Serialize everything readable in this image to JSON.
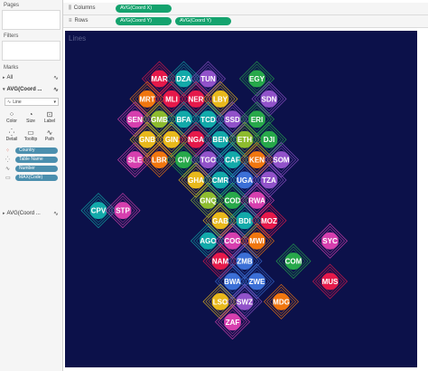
{
  "panel": {
    "pages_title": "Pages",
    "filters_title": "Filters",
    "marks_title": "Marks",
    "all_label": "All",
    "avg_label": "AVG(Coord ...",
    "mark_type": "Line",
    "buttons": [
      {
        "label": "Color",
        "icon": "color-icon"
      },
      {
        "label": "Size",
        "icon": "size-icon"
      },
      {
        "label": "Label",
        "icon": "label-icon"
      },
      {
        "label": "Detail",
        "icon": "detail-icon"
      },
      {
        "label": "Tooltip",
        "icon": "tooltip-icon"
      },
      {
        "label": "Path",
        "icon": "path-icon"
      }
    ],
    "pills": [
      "Country",
      "Table Name",
      "Number",
      "MAX(Code)"
    ],
    "avg2_label": "AVG(Coord ..."
  },
  "shelves": {
    "columns_label": "Columns",
    "columns_pill": "AVG(Coord X)",
    "rows_label": "Rows",
    "rows_pills": [
      "AVG(Coord Y)",
      "AVG(Coord Y)"
    ]
  },
  "viz": {
    "title": "Lines"
  },
  "chart_data": {
    "type": "scatter",
    "title": "Lines",
    "grid": false,
    "points": [
      {
        "code": "MAR",
        "x": 4,
        "y": 1,
        "color": "#e5194a"
      },
      {
        "code": "DZA",
        "x": 5,
        "y": 1,
        "color": "#12a9a9"
      },
      {
        "code": "TUN",
        "x": 6,
        "y": 1,
        "color": "#9152c9"
      },
      {
        "code": "EGY",
        "x": 8,
        "y": 1,
        "color": "#27a84a"
      },
      {
        "code": "MRT",
        "x": 3.5,
        "y": 2,
        "color": "#f0760f"
      },
      {
        "code": "MLI",
        "x": 4.5,
        "y": 2,
        "color": "#e5194a"
      },
      {
        "code": "NER",
        "x": 5.5,
        "y": 2,
        "color": "#e5194a"
      },
      {
        "code": "LBY",
        "x": 6.5,
        "y": 2,
        "color": "#e8b81c"
      },
      {
        "code": "SDN",
        "x": 8.5,
        "y": 2,
        "color": "#9152c9"
      },
      {
        "code": "SEN",
        "x": 3,
        "y": 3,
        "color": "#d63fae"
      },
      {
        "code": "GMB",
        "x": 4,
        "y": 3,
        "color": "#8dbb2f"
      },
      {
        "code": "BFA",
        "x": 5,
        "y": 3,
        "color": "#12a9a9"
      },
      {
        "code": "TCD",
        "x": 6,
        "y": 3,
        "color": "#12a9a9"
      },
      {
        "code": "SSD",
        "x": 7,
        "y": 3,
        "color": "#9152c9"
      },
      {
        "code": "ERI",
        "x": 8,
        "y": 3,
        "color": "#27a84a"
      },
      {
        "code": "GNB",
        "x": 3.5,
        "y": 4,
        "color": "#e8b81c"
      },
      {
        "code": "GIN",
        "x": 4.5,
        "y": 4,
        "color": "#e8b81c"
      },
      {
        "code": "NGA",
        "x": 5.5,
        "y": 4,
        "color": "#e5194a"
      },
      {
        "code": "BEN",
        "x": 6.5,
        "y": 4,
        "color": "#12a9a9"
      },
      {
        "code": "ETH",
        "x": 7.5,
        "y": 4,
        "color": "#8dbb2f"
      },
      {
        "code": "DJI",
        "x": 8.5,
        "y": 4,
        "color": "#27a84a"
      },
      {
        "code": "SLE",
        "x": 3,
        "y": 5,
        "color": "#d63fae"
      },
      {
        "code": "LBR",
        "x": 4,
        "y": 5,
        "color": "#f0760f"
      },
      {
        "code": "CIV",
        "x": 5,
        "y": 5,
        "color": "#27a84a"
      },
      {
        "code": "TGO",
        "x": 6,
        "y": 5,
        "color": "#9152c9"
      },
      {
        "code": "CAF",
        "x": 7,
        "y": 5,
        "color": "#12a9a9"
      },
      {
        "code": "KEN",
        "x": 8,
        "y": 5,
        "color": "#f0760f"
      },
      {
        "code": "SOM",
        "x": 9,
        "y": 5,
        "color": "#9152c9"
      },
      {
        "code": "GHA",
        "x": 5.5,
        "y": 6,
        "color": "#e8b81c"
      },
      {
        "code": "CMR",
        "x": 6.5,
        "y": 6,
        "color": "#12a9a9"
      },
      {
        "code": "UGA",
        "x": 7.5,
        "y": 6,
        "color": "#3b6fd6"
      },
      {
        "code": "TZA",
        "x": 8.5,
        "y": 6,
        "color": "#9152c9"
      },
      {
        "code": "GNQ",
        "x": 6,
        "y": 7,
        "color": "#8dbb2f"
      },
      {
        "code": "COD",
        "x": 7,
        "y": 7,
        "color": "#27a84a"
      },
      {
        "code": "RWA",
        "x": 8,
        "y": 7,
        "color": "#d63fae"
      },
      {
        "code": "CPV",
        "x": 1.5,
        "y": 7.5,
        "color": "#12a9a9"
      },
      {
        "code": "STP",
        "x": 2.5,
        "y": 7.5,
        "color": "#d63fae"
      },
      {
        "code": "GAB",
        "x": 6.5,
        "y": 8,
        "color": "#e8b81c"
      },
      {
        "code": "BDI",
        "x": 7.5,
        "y": 8,
        "color": "#12a9a9"
      },
      {
        "code": "MOZ",
        "x": 8.5,
        "y": 8,
        "color": "#e5194a"
      },
      {
        "code": "AGO",
        "x": 6,
        "y": 9,
        "color": "#12a9a9"
      },
      {
        "code": "COG",
        "x": 7,
        "y": 9,
        "color": "#d63fae"
      },
      {
        "code": "MWI",
        "x": 8,
        "y": 9,
        "color": "#f0760f"
      },
      {
        "code": "SYC",
        "x": 11,
        "y": 9,
        "color": "#d63fae"
      },
      {
        "code": "NAM",
        "x": 6.5,
        "y": 10,
        "color": "#e5194a"
      },
      {
        "code": "ZMB",
        "x": 7.5,
        "y": 10,
        "color": "#3b6fd6"
      },
      {
        "code": "COM",
        "x": 9.5,
        "y": 10,
        "color": "#27a84a"
      },
      {
        "code": "BWA",
        "x": 7,
        "y": 11,
        "color": "#3b6fd6"
      },
      {
        "code": "ZWE",
        "x": 8,
        "y": 11,
        "color": "#3b6fd6"
      },
      {
        "code": "MUS",
        "x": 11,
        "y": 11,
        "color": "#e5194a"
      },
      {
        "code": "LSO",
        "x": 6.5,
        "y": 12,
        "color": "#e8b81c"
      },
      {
        "code": "SWZ",
        "x": 7.5,
        "y": 12,
        "color": "#9152c9"
      },
      {
        "code": "MDG",
        "x": 9,
        "y": 12,
        "color": "#f0760f"
      },
      {
        "code": "ZAF",
        "x": 7,
        "y": 13,
        "color": "#d63fae"
      }
    ]
  }
}
